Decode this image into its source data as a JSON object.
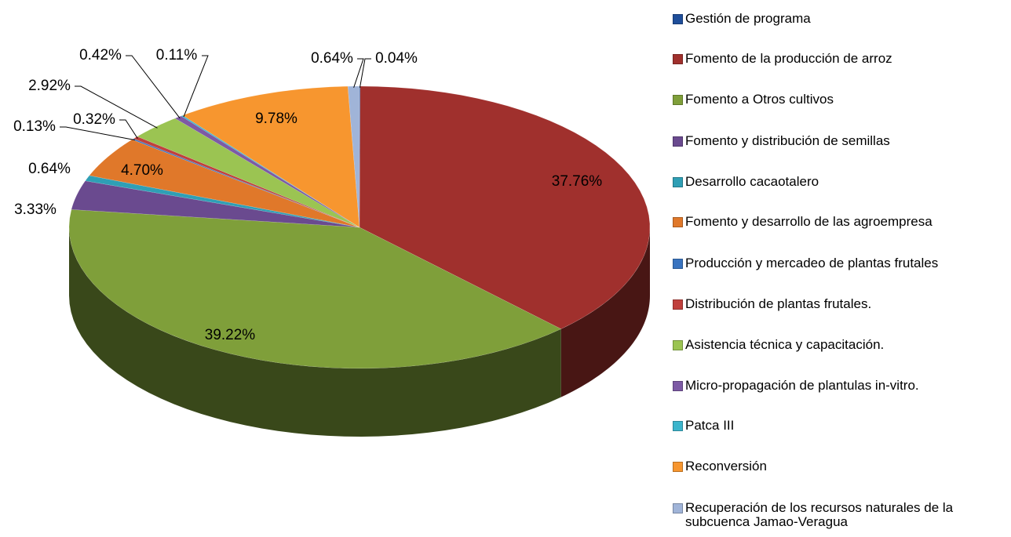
{
  "chart_data": {
    "type": "pie3d",
    "categories": [
      "Gestión de programa",
      "Fomento de la producción de arroz",
      "Fomento a Otros cultivos",
      "Fomento y distribución de semillas",
      "Desarrollo cacaotalero",
      "Fomento y desarrollo de las agroempresa",
      "Producción y mercadeo de plantas frutales",
      "Distribución de plantas frutales.",
      "Asistencia técnica y capacitación.",
      "Micro-propagación de plantulas in-vitro.",
      "Patca III",
      "Reconversión",
      "Recuperación de los recursos naturales de la subcuenca Jamao-Veragua"
    ],
    "values": [
      0.04,
      37.76,
      39.22,
      3.33,
      0.64,
      4.7,
      0.13,
      0.32,
      2.92,
      0.42,
      0.11,
      9.78,
      0.64
    ],
    "value_labels": [
      "0.04%",
      "37.76%",
      "39.22%",
      "3.33%",
      "0.64%",
      "4.70%",
      "0.13%",
      "0.32%",
      "2.92%",
      "0.42%",
      "0.11%",
      "9.78%",
      "0.64%"
    ],
    "colors": [
      "#1f4e9a",
      "#a0302d",
      "#7f9f3a",
      "#6a4a8f",
      "#2f9fb5",
      "#e0782a",
      "#3a74c0",
      "#c0403d",
      "#9bc452",
      "#7d5aa5",
      "#3cb5cc",
      "#f7962f",
      "#a0b4d8"
    ],
    "legend": "right"
  }
}
